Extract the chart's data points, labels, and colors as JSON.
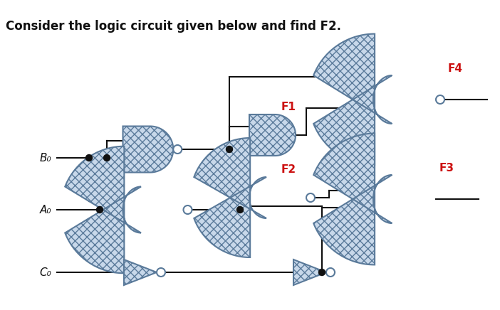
{
  "title": "Consider the logic circuit given below and find F2.",
  "title_fontsize": 12,
  "bg_color": "#ffffff",
  "gate_fill": "#c8d8ea",
  "gate_edge": "#5a7a9a",
  "wire_color": "#111111",
  "dot_color": "#111111",
  "label_red": "#cc1111",
  "label_black": "#111111",
  "bubble_fill": "#ffffff",
  "inputs": [
    "B₀",
    "A₀",
    "C₀"
  ],
  "gate_hatch": "xxx"
}
